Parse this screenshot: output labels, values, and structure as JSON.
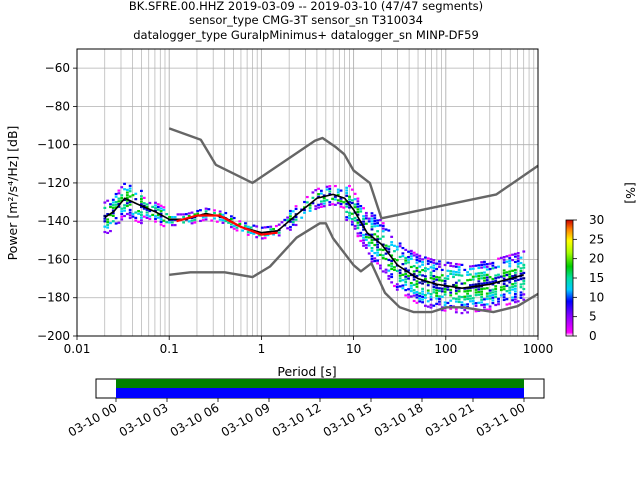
{
  "title_lines": [
    "BK.SFRE.00.HHZ   2019-03-09 -- 2019-03-10  (47/47 segments)",
    "sensor_type CMG-3T sensor_sn T310034",
    "datalogger_type GuralpMinimus+ datalogger_sn MINP-DF59"
  ],
  "chart_data": {
    "type": "line",
    "xlabel": "Period [s]",
    "ylabel": "Power [m²/s⁴/Hz] [dB]",
    "x_scale": "log",
    "xlim": [
      0.01,
      1000
    ],
    "ylim": [
      -200,
      -50
    ],
    "x_ticks": [
      0.01,
      0.1,
      1,
      10,
      100,
      1000
    ],
    "x_tick_labels": [
      "0.01",
      "0.1",
      "1",
      "10",
      "100",
      "1000"
    ],
    "y_ticks": [
      -200,
      -180,
      -160,
      -140,
      -120,
      -100,
      -80,
      -60
    ],
    "y_tick_labels": [
      "−200",
      "−180",
      "−160",
      "−140",
      "−120",
      "−100",
      "−80",
      "−60"
    ],
    "grid": true,
    "series": [
      {
        "role": "noise-model-high",
        "color": "#666666",
        "x": [
          0.1,
          0.22,
          0.32,
          0.8,
          3.8,
          4.6,
          6.3,
          7.9,
          10,
          15,
          20,
          354,
          1000
        ],
        "y": [
          -91.5,
          -97.4,
          -110.5,
          -120,
          -98,
          -96.5,
          -101,
          -105,
          -113.5,
          -120,
          -138.5,
          -126,
          -111
        ]
      },
      {
        "role": "noise-model-low",
        "color": "#666666",
        "x": [
          0.1,
          0.17,
          0.4,
          0.8,
          1.24,
          2.4,
          4.3,
          5.0,
          6.0,
          10,
          12,
          15.6,
          21.9,
          31.6,
          45,
          70,
          101,
          154,
          328,
          600,
          1000
        ],
        "y": [
          -168,
          -166.7,
          -166.7,
          -169.2,
          -163.7,
          -148.6,
          -141.1,
          -141.1,
          -149,
          -163,
          -166.2,
          -162,
          -177.5,
          -185,
          -187.5,
          -187.5,
          -185,
          -185,
          -187.5,
          -184.4,
          -178
        ]
      },
      {
        "role": "mean",
        "color": "#000000",
        "x": [
          0.02,
          0.025,
          0.033,
          0.045,
          0.07,
          0.1,
          0.15,
          0.25,
          0.4,
          0.6,
          1,
          1.5,
          2.5,
          4,
          6,
          8,
          10,
          14,
          20,
          30,
          50,
          80,
          150,
          300,
          500,
          700
        ],
        "y": [
          -138,
          -135,
          -128,
          -131,
          -135,
          -139,
          -139,
          -136,
          -138,
          -143,
          -146,
          -145,
          -136,
          -128,
          -126,
          -128,
          -134,
          -146,
          -152,
          -163,
          -170,
          -173,
          -175,
          -173,
          -170,
          -168
        ]
      },
      {
        "role": "mode",
        "color": "#ff0000",
        "x": [
          0.12,
          0.2,
          0.35,
          0.6,
          1,
          1.5
        ],
        "y": [
          -140,
          -137,
          -137,
          -143,
          -147,
          -146
        ]
      }
    ],
    "colorbar": {
      "label": "[%]",
      "min": 0,
      "max": 30,
      "ticks": [
        0,
        5,
        10,
        15,
        20,
        25,
        30
      ]
    }
  },
  "timeline": {
    "tick_labels": [
      "03-10 00",
      "03-10 03",
      "03-10 06",
      "03-10 09",
      "03-10 12",
      "03-10 15",
      "03-10 18",
      "03-10 21",
      "03-11 00"
    ],
    "colors": [
      "#008000",
      "#0000ff"
    ]
  }
}
